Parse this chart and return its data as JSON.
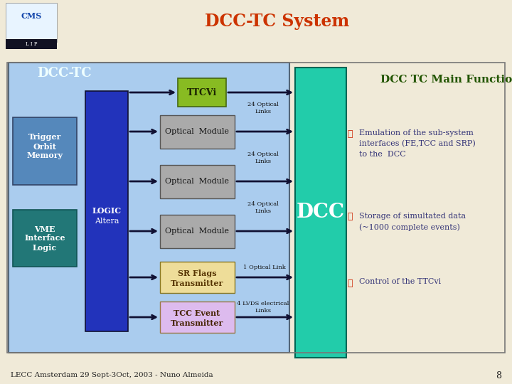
{
  "title": "DCC-TC System",
  "title_color": "#cc3300",
  "slide_bg": "#f0ead8",
  "main_box_color": "#aaccee",
  "logic_box_color": "#2233bb",
  "dcc_box_color": "#22ccaa",
  "trigger_box_color": "#5588bb",
  "vme_box_color": "#227777",
  "optical_module_color": "#aaaaaa",
  "ttcvi_color": "#88bb22",
  "sr_flags_color": "#eedd99",
  "tcc_event_color": "#ddbbee",
  "arrow_color": "#000000",
  "main_functions_title": "DCC TC Main Functions",
  "main_functions_color": "#225500",
  "bullet_color": "#cc2200",
  "bullet_text_color": "#333377",
  "dcc_label_color": "#ffffff",
  "footer_text": "LECC Amsterdam 29 Sept-3Oct, 2003 - Nuno Almeida",
  "page_num": "8"
}
